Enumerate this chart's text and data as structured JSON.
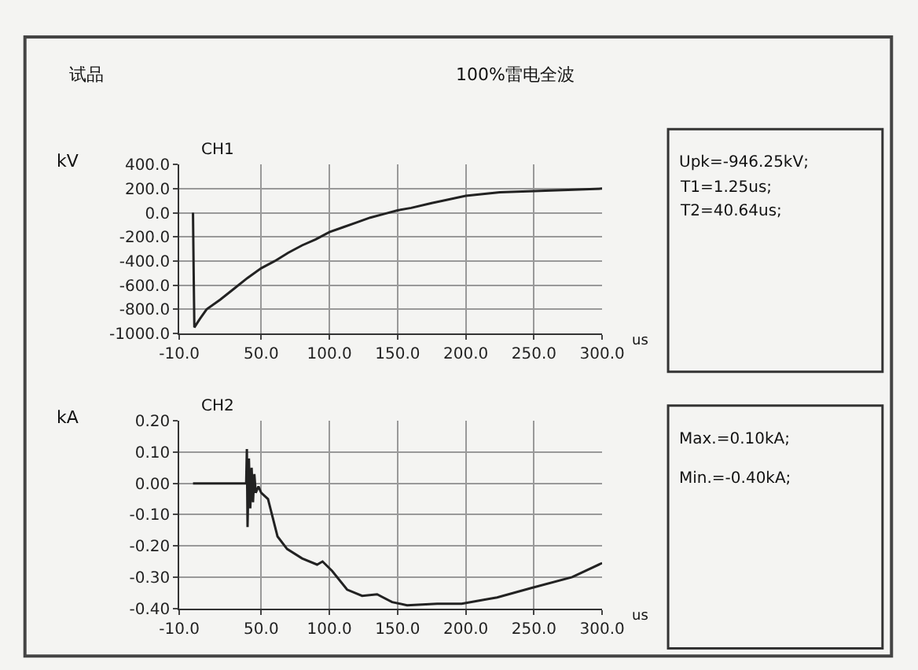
{
  "chart_data": [
    {
      "type": "line",
      "title": "100%雷电全波",
      "subtitle": "试品",
      "ylabel": "kV",
      "xlabel": "us",
      "annotations": [
        "CH1",
        "Upk=-946.25kV;",
        "T1=1.25us;",
        "T2=40.64us;"
      ],
      "xlim": [
        -10,
        300
      ],
      "xticks": [
        {
          "value": -10,
          "label": "-10.0"
        },
        {
          "value": 50,
          "label": "50.0"
        },
        {
          "value": 100,
          "label": "100.0"
        },
        {
          "value": 150,
          "label": "150.0"
        },
        {
          "value": 200,
          "label": "200.0"
        },
        {
          "value": 250,
          "label": "250.0"
        },
        {
          "value": 300,
          "label": "300.0"
        }
      ],
      "ylim": [
        -1000,
        400
      ],
      "yticks": [
        {
          "value": -1000,
          "label": "-1000.0"
        },
        {
          "value": -800,
          "label": "-800.0"
        },
        {
          "value": -600,
          "label": "-600.0"
        },
        {
          "value": -400,
          "label": "-400.0"
        },
        {
          "value": -200,
          "label": "-200.0"
        },
        {
          "value": 0,
          "label": "0.0"
        },
        {
          "value": 200,
          "label": "200.0"
        },
        {
          "value": 400,
          "label": "400.0"
        }
      ],
      "grid": true,
      "series": [
        {
          "color": "#222222",
          "x": [
            0,
            0.5,
            1,
            5,
            10,
            20,
            30,
            40,
            50,
            60,
            70,
            80,
            90,
            100,
            110,
            120,
            130,
            140,
            150,
            160,
            175,
            200,
            225,
            250,
            275,
            300
          ],
          "values": [
            0,
            -500,
            -950,
            -880,
            -800,
            -720,
            -630,
            -540,
            -460,
            -400,
            -330,
            -270,
            -220,
            -160,
            -120,
            -80,
            -40,
            -10,
            20,
            40,
            80,
            140,
            170,
            180,
            190,
            200
          ]
        }
      ]
    },
    {
      "type": "line",
      "ylabel": "kA",
      "xlabel": "us",
      "annotations": [
        "CH2",
        "Max.=0.10kA;",
        "Min.=-0.40kA;"
      ],
      "xlim": [
        -10,
        300
      ],
      "xticks": [
        {
          "value": -10,
          "label": "-10.0"
        },
        {
          "value": 50,
          "label": "50.0"
        },
        {
          "value": 100,
          "label": "100.0"
        },
        {
          "value": 150,
          "label": "150.0"
        },
        {
          "value": 200,
          "label": "200.0"
        },
        {
          "value": 250,
          "label": "250.0"
        },
        {
          "value": 300,
          "label": "300.0"
        }
      ],
      "ylim": [
        -0.4,
        0.2
      ],
      "yticks": [
        {
          "value": -0.4,
          "label": "-0.40"
        },
        {
          "value": -0.3,
          "label": "-0.30"
        },
        {
          "value": -0.2,
          "label": "-0.20"
        },
        {
          "value": -0.1,
          "label": "-0.10"
        },
        {
          "value": 0,
          "label": "0.00"
        },
        {
          "value": 0.1,
          "label": "0.10"
        },
        {
          "value": 0.2,
          "label": "0.20"
        }
      ],
      "grid": true,
      "series": [
        {
          "color": "#222222",
          "x": [
            0,
            20,
            35,
            39,
            39.5,
            40,
            41,
            42,
            43,
            44,
            45,
            46,
            48,
            50,
            55,
            62,
            69,
            80,
            91,
            95,
            102,
            113,
            124,
            135,
            146,
            157,
            179,
            197,
            223,
            248,
            278,
            300
          ],
          "values": [
            0,
            0,
            0.0,
            0.0,
            0.11,
            -0.14,
            0.08,
            -0.08,
            0.05,
            -0.06,
            0.03,
            -0.03,
            -0.01,
            -0.03,
            -0.05,
            -0.17,
            -0.21,
            -0.24,
            -0.26,
            -0.25,
            -0.28,
            -0.34,
            -0.36,
            -0.355,
            -0.38,
            -0.39,
            -0.385,
            -0.385,
            -0.365,
            -0.335,
            -0.3,
            -0.255
          ]
        }
      ]
    }
  ]
}
